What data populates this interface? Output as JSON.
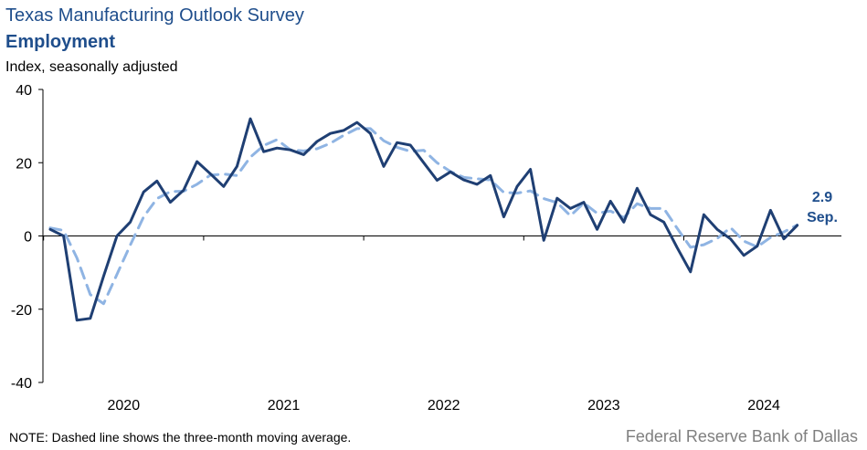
{
  "header": {
    "title": "Texas Manufacturing Outlook Survey",
    "subtitle": "Employment",
    "unit_label": "Index, seasonally adjusted"
  },
  "footer": {
    "note": "NOTE: Dashed line shows the three-month  moving average.",
    "source": "Federal Reserve Bank of Dallas"
  },
  "callout": {
    "value": "2.9",
    "month": "Sep."
  },
  "colors": {
    "main_series": "#1f3f73",
    "ma_series": "#8fb4e3",
    "callout_text": "#1f4e8c"
  },
  "chart_data": {
    "type": "line",
    "title": "Employment",
    "ylabel": "Index, seasonally adjusted",
    "ylim": [
      -40,
      40
    ],
    "yticks": [
      -40,
      -20,
      0,
      20,
      40
    ],
    "xticks": [
      "2020",
      "2021",
      "2022",
      "2023",
      "2024"
    ],
    "x_start": "2020-01",
    "x_end": "2024-09",
    "grid": false,
    "series": [
      {
        "name": "",
        "style": "solid",
        "values": [
          1.8,
          0,
          -23,
          -22.5,
          -11,
          0,
          3.8,
          12,
          15,
          9.2,
          12.5,
          20.3,
          17,
          13.5,
          19,
          32,
          23,
          24,
          23.5,
          22.2,
          25.8,
          28,
          28.8,
          31,
          28,
          19,
          25.5,
          24.8,
          20,
          15.2,
          17.5,
          15.3,
          14.1,
          16.5,
          5.2,
          13.5,
          18.2,
          -1.2,
          10.3,
          7.5,
          9.2,
          1.8,
          9.5,
          3.8,
          13,
          5.8,
          3.8,
          -3.2,
          -9.8,
          5.8,
          1.8,
          -0.8,
          -5.3,
          -2.8,
          7,
          -0.8,
          2.9
        ]
      },
      {
        "name": "",
        "style": "dashed",
        "values": [
          2.2,
          1.5,
          -6,
          -16,
          -18.5,
          -10.5,
          -2.5,
          5.2,
          10.2,
          12.1,
          12.2,
          14.1,
          16.6,
          16.9,
          16.5,
          21.5,
          24.7,
          26.3,
          23.5,
          23.2,
          23.8,
          25.3,
          27.5,
          29.3,
          29.3,
          26,
          24.2,
          23.1,
          23.4,
          20,
          17.6,
          16,
          15.6,
          15.3,
          11.9,
          11.7,
          12.3,
          10.2,
          9.1,
          5.5,
          9,
          6.2,
          6.8,
          5,
          8.8,
          7.5,
          7.5,
          2.1,
          -3.1,
          -2.4,
          -0.7,
          2.3,
          -1.4,
          -3,
          -0.4,
          1.1,
          3
        ]
      }
    ]
  }
}
